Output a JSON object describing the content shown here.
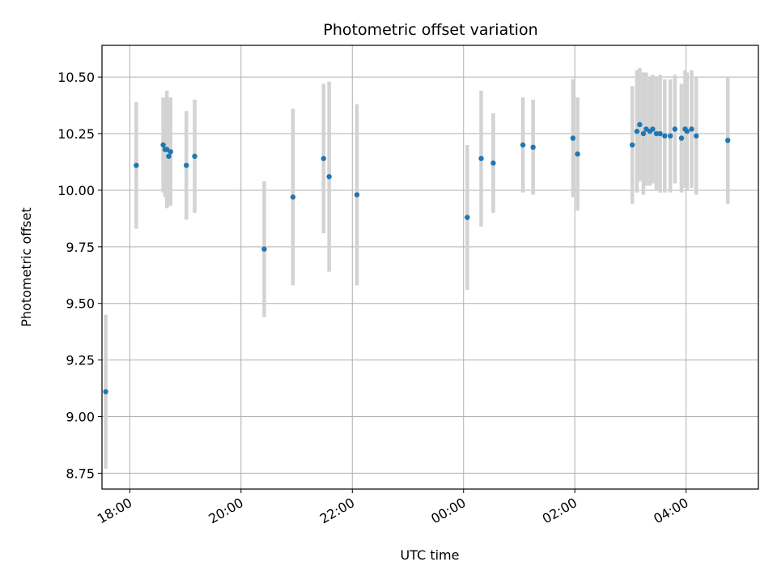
{
  "chart_data": {
    "type": "scatter",
    "title": "Photometric offset variation",
    "xlabel": "UTC time",
    "ylabel": "Photometric offset",
    "x_ticks": [
      "18:00",
      "20:00",
      "22:00",
      "00:00",
      "02:00",
      "04:00"
    ],
    "y_ticks": [
      "8.75",
      "9.00",
      "9.25",
      "9.50",
      "9.75",
      "10.00",
      "10.25",
      "10.50"
    ],
    "x_tick_values": [
      18,
      20,
      22,
      24,
      26,
      28
    ],
    "y_tick_values": [
      8.75,
      9.0,
      9.25,
      9.5,
      9.75,
      10.0,
      10.25,
      10.5
    ],
    "xlim": [
      17.5,
      29.3
    ],
    "ylim": [
      8.68,
      10.64
    ],
    "grid": true,
    "colors": {
      "points": "#1f77b4",
      "errorbars": "#d3d3d3",
      "grid": "#b0b0b0"
    },
    "points": [
      {
        "x": "17:34",
        "y": 9.11,
        "err": 0.34
      },
      {
        "x": "18:07",
        "y": 10.11,
        "err": 0.28
      },
      {
        "x": "18:36",
        "y": 10.2,
        "err": 0.21
      },
      {
        "x": "18:38",
        "y": 10.18,
        "err": 0.21
      },
      {
        "x": "18:40",
        "y": 10.18,
        "err": 0.26
      },
      {
        "x": "18:42",
        "y": 10.15,
        "err": 0.22
      },
      {
        "x": "18:44",
        "y": 10.17,
        "err": 0.24
      },
      {
        "x": "19:01",
        "y": 10.11,
        "err": 0.24
      },
      {
        "x": "19:10",
        "y": 10.15,
        "err": 0.25
      },
      {
        "x": "20:25",
        "y": 9.74,
        "err": 0.3
      },
      {
        "x": "20:56",
        "y": 9.97,
        "err": 0.39
      },
      {
        "x": "21:29",
        "y": 10.14,
        "err": 0.33
      },
      {
        "x": "21:35",
        "y": 10.06,
        "err": 0.42
      },
      {
        "x": "22:05",
        "y": 9.98,
        "err": 0.4
      },
      {
        "x": "00:04",
        "y": 9.88,
        "err": 0.32
      },
      {
        "x": "00:19",
        "y": 10.14,
        "err": 0.3
      },
      {
        "x": "00:32",
        "y": 10.12,
        "err": 0.22
      },
      {
        "x": "01:04",
        "y": 10.2,
        "err": 0.21
      },
      {
        "x": "01:15",
        "y": 10.19,
        "err": 0.21
      },
      {
        "x": "01:58",
        "y": 10.23,
        "err": 0.26
      },
      {
        "x": "02:03",
        "y": 10.16,
        "err": 0.25
      },
      {
        "x": "03:02",
        "y": 10.2,
        "err": 0.26
      },
      {
        "x": "03:07",
        "y": 10.26,
        "err": 0.27
      },
      {
        "x": "03:10",
        "y": 10.29,
        "err": 0.25
      },
      {
        "x": "03:14",
        "y": 10.25,
        "err": 0.27
      },
      {
        "x": "03:17",
        "y": 10.27,
        "err": 0.25
      },
      {
        "x": "03:21",
        "y": 10.26,
        "err": 0.24
      },
      {
        "x": "03:24",
        "y": 10.27,
        "err": 0.24
      },
      {
        "x": "03:28",
        "y": 10.25,
        "err": 0.25
      },
      {
        "x": "03:32",
        "y": 10.25,
        "err": 0.26
      },
      {
        "x": "03:37",
        "y": 10.24,
        "err": 0.25
      },
      {
        "x": "03:43",
        "y": 10.24,
        "err": 0.25
      },
      {
        "x": "03:48",
        "y": 10.27,
        "err": 0.24
      },
      {
        "x": "03:55",
        "y": 10.23,
        "err": 0.24
      },
      {
        "x": "03:59",
        "y": 10.27,
        "err": 0.26
      },
      {
        "x": "04:01",
        "y": 10.26,
        "err": 0.26
      },
      {
        "x": "04:06",
        "y": 10.27,
        "err": 0.26
      },
      {
        "x": "04:11",
        "y": 10.24,
        "err": 0.26
      },
      {
        "x": "04:45",
        "y": 10.22,
        "err": 0.28
      }
    ]
  }
}
